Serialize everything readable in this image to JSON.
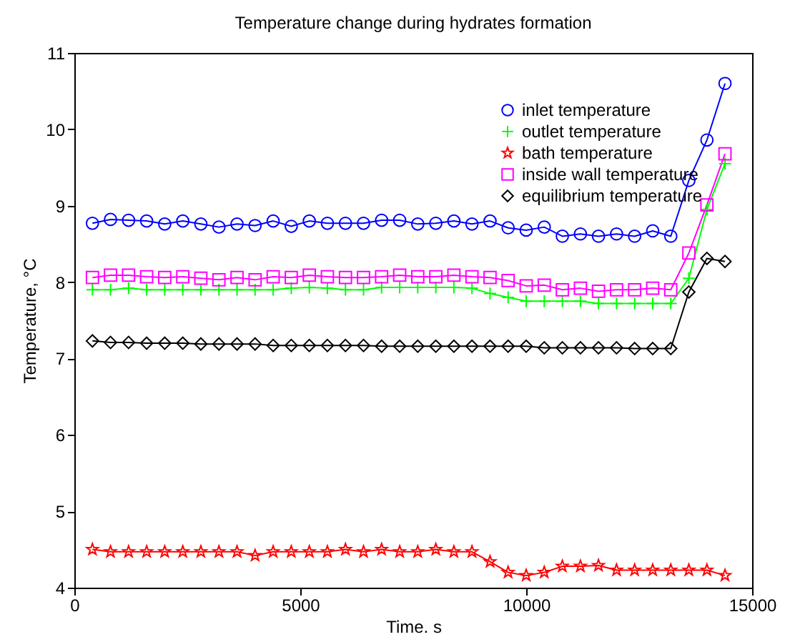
{
  "chart_data": {
    "type": "line",
    "title": "Temperature change during hydrates formation",
    "xlabel": "Time. s",
    "ylabel": "Temperature, °C",
    "x": [
      400,
      800,
      1200,
      1600,
      2000,
      2400,
      2800,
      3200,
      3600,
      4000,
      4400,
      4800,
      5200,
      5600,
      6000,
      6400,
      6800,
      7200,
      7600,
      8000,
      8400,
      8800,
      9200,
      9600,
      10000,
      10400,
      10800,
      11200,
      11600,
      12000,
      12400,
      12800,
      13200,
      13600,
      14000,
      14400
    ],
    "series": [
      {
        "name": "inlet temperature",
        "color": "#0000ff",
        "marker": "circle",
        "values": [
          8.77,
          8.82,
          8.81,
          8.8,
          8.76,
          8.8,
          8.76,
          8.72,
          8.76,
          8.74,
          8.8,
          8.73,
          8.8,
          8.77,
          8.77,
          8.77,
          8.81,
          8.81,
          8.76,
          8.77,
          8.8,
          8.76,
          8.8,
          8.71,
          8.68,
          8.72,
          8.6,
          8.63,
          8.6,
          8.63,
          8.6,
          8.67,
          8.6,
          9.33,
          9.86,
          10.6
        ]
      },
      {
        "name": "outlet temperature",
        "color": "#00ff00",
        "marker": "cross",
        "values": [
          7.9,
          7.9,
          7.92,
          7.9,
          7.9,
          7.9,
          7.9,
          7.9,
          7.9,
          7.9,
          7.9,
          7.92,
          7.93,
          7.92,
          7.9,
          7.9,
          7.93,
          7.93,
          7.93,
          7.93,
          7.93,
          7.92,
          7.85,
          7.8,
          7.75,
          7.75,
          7.75,
          7.75,
          7.72,
          7.72,
          7.72,
          7.72,
          7.72,
          8.05,
          8.95,
          9.55
        ]
      },
      {
        "name": "bath temperature",
        "color": "#ff0000",
        "marker": "star",
        "values": [
          4.5,
          4.47,
          4.47,
          4.47,
          4.47,
          4.47,
          4.47,
          4.47,
          4.47,
          4.42,
          4.47,
          4.47,
          4.47,
          4.47,
          4.5,
          4.47,
          4.5,
          4.47,
          4.47,
          4.5,
          4.47,
          4.47,
          4.34,
          4.2,
          4.16,
          4.2,
          4.28,
          4.28,
          4.29,
          4.23,
          4.23,
          4.23,
          4.23,
          4.23,
          4.23,
          4.16
        ]
      },
      {
        "name": "inside wall temperature",
        "color": "#ff00ff",
        "marker": "square",
        "values": [
          8.06,
          8.09,
          8.09,
          8.07,
          8.06,
          8.07,
          8.05,
          8.03,
          8.06,
          8.03,
          8.07,
          8.06,
          8.09,
          8.07,
          8.06,
          8.06,
          8.07,
          8.09,
          8.07,
          8.07,
          8.09,
          8.07,
          8.06,
          8.02,
          7.95,
          7.96,
          7.9,
          7.92,
          7.88,
          7.9,
          7.9,
          7.92,
          7.9,
          8.38,
          9.01,
          9.68
        ]
      },
      {
        "name": "equilibrium temperature",
        "color": "#000000",
        "marker": "diamond",
        "values": [
          7.23,
          7.21,
          7.21,
          7.2,
          7.2,
          7.2,
          7.19,
          7.19,
          7.19,
          7.19,
          7.17,
          7.17,
          7.17,
          7.17,
          7.17,
          7.17,
          7.16,
          7.16,
          7.16,
          7.16,
          7.16,
          7.16,
          7.16,
          7.16,
          7.16,
          7.14,
          7.14,
          7.14,
          7.14,
          7.14,
          7.13,
          7.13,
          7.13,
          7.87,
          8.31,
          8.27
        ]
      }
    ],
    "xlim": [
      0,
      15000
    ],
    "xticks": [
      0,
      5000,
      10000,
      15000
    ],
    "ylim": [
      4,
      11
    ],
    "yticks": [
      4,
      5,
      6,
      7,
      8,
      9,
      10,
      11
    ],
    "grid": false,
    "legend": "top right",
    "line_style": "solid"
  }
}
